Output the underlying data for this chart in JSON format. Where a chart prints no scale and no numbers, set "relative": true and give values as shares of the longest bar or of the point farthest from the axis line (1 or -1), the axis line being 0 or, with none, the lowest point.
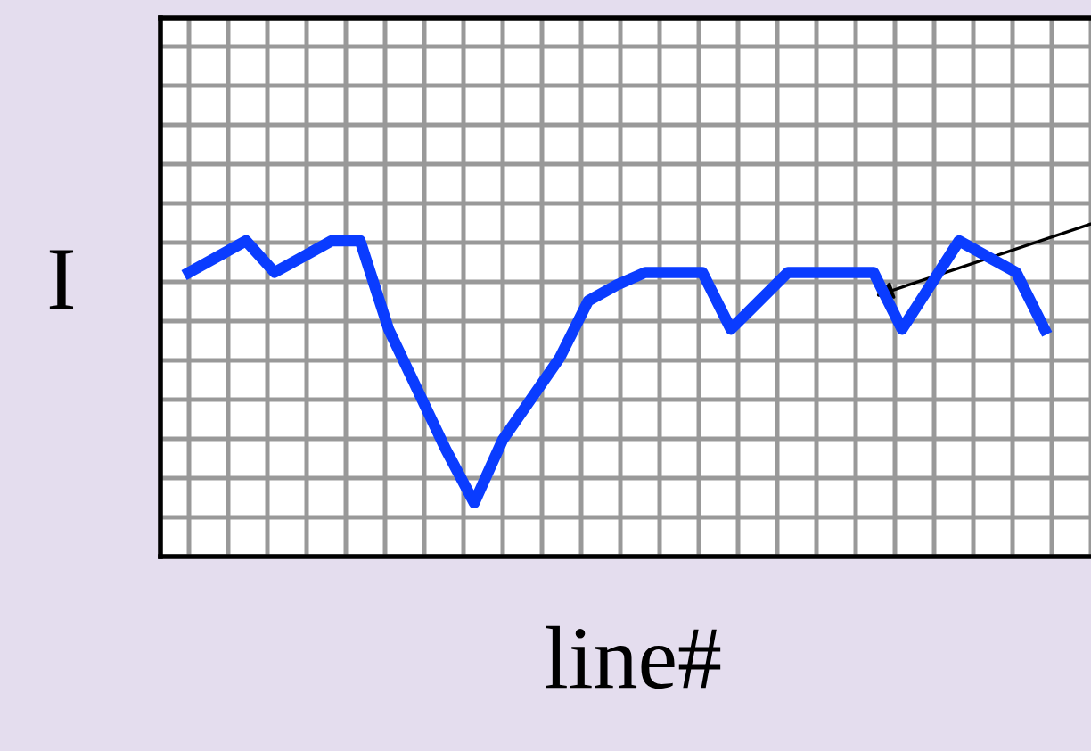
{
  "chart_data": {
    "type": "line",
    "relative": true,
    "xlabel": "line#",
    "ylabel": "I",
    "grid": true,
    "legend": false,
    "marker": "none",
    "line_style": "solid",
    "categories": [
      null,
      null,
      null,
      null,
      null,
      null,
      null,
      null,
      null,
      null,
      null,
      null,
      null,
      null,
      null,
      null,
      null,
      null,
      null,
      null,
      null,
      null,
      null,
      null,
      null,
      null,
      null,
      null,
      null,
      null,
      null
    ],
    "series": [
      {
        "color": "#0a3cff",
        "values": [
          0.9,
          0.95,
          1,
          0.9,
          0.95,
          1,
          1,
          0.72,
          0.53,
          0.34,
          0.17,
          0.37,
          0.5,
          0.63,
          0.81,
          0.86,
          0.9,
          0.9,
          0.9,
          0.72,
          0.81,
          0.9,
          0.9,
          0.9,
          0.9,
          0.72,
          0.86,
          1,
          0.95,
          0.9,
          0.72
        ]
      }
    ]
  }
}
